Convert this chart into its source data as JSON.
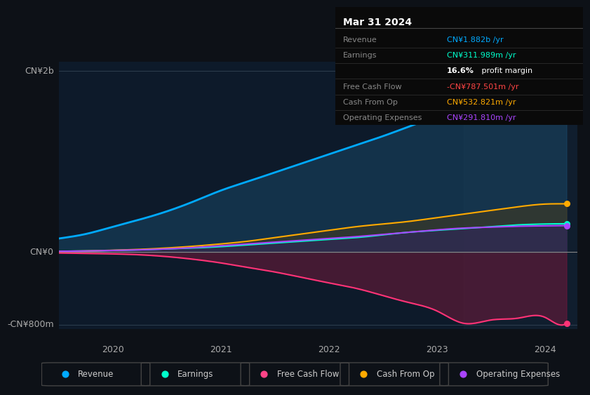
{
  "bg_color": "#0d1117",
  "chart_bg": "#0d1a2a",
  "title": "Mar 31 2024",
  "y_label_top": "CN¥2b",
  "y_label_zero": "CN¥0",
  "y_label_bottom": "-CN¥800m",
  "x_ticks": [
    "2020",
    "2021",
    "2022",
    "2023",
    "2024"
  ],
  "legend_items": [
    {
      "label": "Revenue",
      "color": "#00aaff"
    },
    {
      "label": "Earnings",
      "color": "#00ffcc"
    },
    {
      "label": "Free Cash Flow",
      "color": "#ff4488"
    },
    {
      "label": "Cash From Op",
      "color": "#ffaa00"
    },
    {
      "label": "Operating Expenses",
      "color": "#aa44ff"
    }
  ],
  "info_box": {
    "date": "Mar 31 2024",
    "rows": [
      {
        "label": "Revenue",
        "value": "CN¥1.882b /yr",
        "color": "#00aaff"
      },
      {
        "label": "Earnings",
        "value": "CN¥311.989m /yr",
        "color": "#00ffcc"
      },
      {
        "label": "",
        "value": "16.6% profit margin",
        "color": "#ffffff",
        "bold_part": "16.6%"
      },
      {
        "label": "Free Cash Flow",
        "value": "-CN¥787.501m /yr",
        "color": "#ff4444"
      },
      {
        "label": "Cash From Op",
        "value": "CN¥532.821m /yr",
        "color": "#ffaa00"
      },
      {
        "label": "Operating Expenses",
        "value": "CN¥291.810m /yr",
        "color": "#aa44ff"
      }
    ]
  },
  "series": {
    "x": [
      2019.25,
      2019.5,
      2019.75,
      2020.0,
      2020.25,
      2020.5,
      2020.75,
      2021.0,
      2021.25,
      2021.5,
      2021.75,
      2022.0,
      2022.25,
      2022.5,
      2022.75,
      2023.0,
      2023.25,
      2023.5,
      2023.75,
      2024.0,
      2024.1,
      2024.2
    ],
    "revenue": [
      100,
      150,
      200,
      280,
      360,
      450,
      560,
      680,
      780,
      880,
      980,
      1080,
      1180,
      1280,
      1390,
      1500,
      1600,
      1700,
      1800,
      1870,
      1882,
      1882
    ],
    "earnings": [
      5,
      8,
      12,
      18,
      25,
      35,
      45,
      60,
      80,
      100,
      120,
      140,
      160,
      190,
      220,
      240,
      260,
      280,
      300,
      310,
      312,
      312
    ],
    "free_cash_flow": [
      -5,
      -10,
      -15,
      -20,
      -30,
      -50,
      -80,
      -120,
      -170,
      -220,
      -280,
      -340,
      -400,
      -480,
      -560,
      -650,
      -787,
      -750,
      -730,
      -720,
      -788,
      -788
    ],
    "cash_from_op": [
      5,
      8,
      12,
      20,
      30,
      45,
      65,
      90,
      120,
      160,
      200,
      240,
      280,
      310,
      340,
      380,
      420,
      460,
      500,
      530,
      533,
      533
    ],
    "op_expenses": [
      5,
      8,
      12,
      18,
      25,
      35,
      50,
      70,
      90,
      110,
      130,
      150,
      170,
      195,
      220,
      245,
      265,
      275,
      285,
      290,
      292,
      292
    ]
  },
  "ylim": [
    -850,
    2100
  ],
  "xlim": [
    2019.5,
    2024.3
  ],
  "highlight_x": 2023.25,
  "revenue_color": "#00aaff",
  "earnings_color": "#00ffcc",
  "fcf_color": "#ff3377",
  "cashop_color": "#ffaa00",
  "opex_color": "#aa44ff",
  "revenue_fill": "#1a4a6a",
  "earnings_fill": "#1a4a4a",
  "fcf_fill": "#6a1a3a",
  "cashop_fill": "#4a3a1a",
  "opex_fill": "#3a1a5a"
}
